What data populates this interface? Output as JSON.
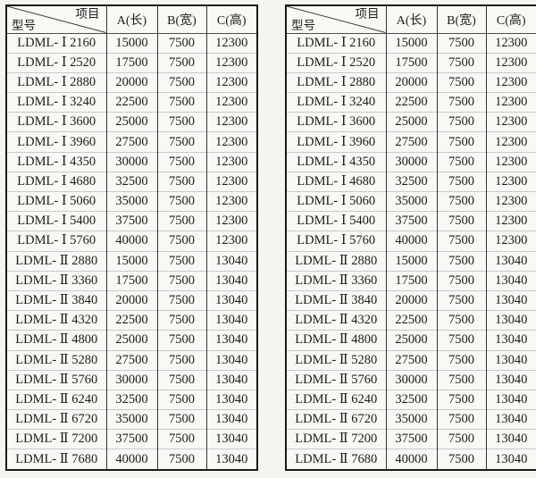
{
  "colors": {
    "bg": "#f5f4f0",
    "table-bg": "#f9f8f4",
    "table-border": "#1a1a1a",
    "grid-dark": "#333333",
    "grid-light": "#c4cad1",
    "header-rule": "#4a4e52",
    "text": "#1c1c1c"
  },
  "header": {
    "diag_top": "项目",
    "diag_bottom": "型号",
    "columns": [
      "A(长)",
      "B(宽)",
      "C(高)"
    ]
  },
  "rows": [
    {
      "model": "LDML- Ⅰ 2160",
      "a": "15000",
      "b": "7500",
      "c": "12300"
    },
    {
      "model": "LDML- Ⅰ 2520",
      "a": "17500",
      "b": "7500",
      "c": "12300"
    },
    {
      "model": "LDML- Ⅰ 2880",
      "a": "20000",
      "b": "7500",
      "c": "12300"
    },
    {
      "model": "LDML- Ⅰ 3240",
      "a": "22500",
      "b": "7500",
      "c": "12300"
    },
    {
      "model": "LDML- Ⅰ 3600",
      "a": "25000",
      "b": "7500",
      "c": "12300"
    },
    {
      "model": "LDML- Ⅰ 3960",
      "a": "27500",
      "b": "7500",
      "c": "12300"
    },
    {
      "model": "LDML- Ⅰ 4350",
      "a": "30000",
      "b": "7500",
      "c": "12300"
    },
    {
      "model": "LDML- Ⅰ 4680",
      "a": "32500",
      "b": "7500",
      "c": "12300"
    },
    {
      "model": "LDML- Ⅰ 5060",
      "a": "35000",
      "b": "7500",
      "c": "12300"
    },
    {
      "model": "LDML- Ⅰ 5400",
      "a": "37500",
      "b": "7500",
      "c": "12300"
    },
    {
      "model": "LDML- Ⅰ 5760",
      "a": "40000",
      "b": "7500",
      "c": "12300"
    },
    {
      "model": "LDML- Ⅱ 2880",
      "a": "15000",
      "b": "7500",
      "c": "13040"
    },
    {
      "model": "LDML- Ⅱ 3360",
      "a": "17500",
      "b": "7500",
      "c": "13040"
    },
    {
      "model": "LDML- Ⅱ 3840",
      "a": "20000",
      "b": "7500",
      "c": "13040"
    },
    {
      "model": "LDML- Ⅱ 4320",
      "a": "22500",
      "b": "7500",
      "c": "13040"
    },
    {
      "model": "LDML- Ⅱ 4800",
      "a": "25000",
      "b": "7500",
      "c": "13040"
    },
    {
      "model": "LDML- Ⅱ 5280",
      "a": "27500",
      "b": "7500",
      "c": "13040"
    },
    {
      "model": "LDML- Ⅱ 5760",
      "a": "30000",
      "b": "7500",
      "c": "13040"
    },
    {
      "model": "LDML- Ⅱ 6240",
      "a": "32500",
      "b": "7500",
      "c": "13040"
    },
    {
      "model": "LDML- Ⅱ 6720",
      "a": "35000",
      "b": "7500",
      "c": "13040"
    },
    {
      "model": "LDML- Ⅱ 7200",
      "a": "37500",
      "b": "7500",
      "c": "13040"
    },
    {
      "model": "LDML- Ⅱ 7680",
      "a": "40000",
      "b": "7500",
      "c": "13040"
    }
  ]
}
